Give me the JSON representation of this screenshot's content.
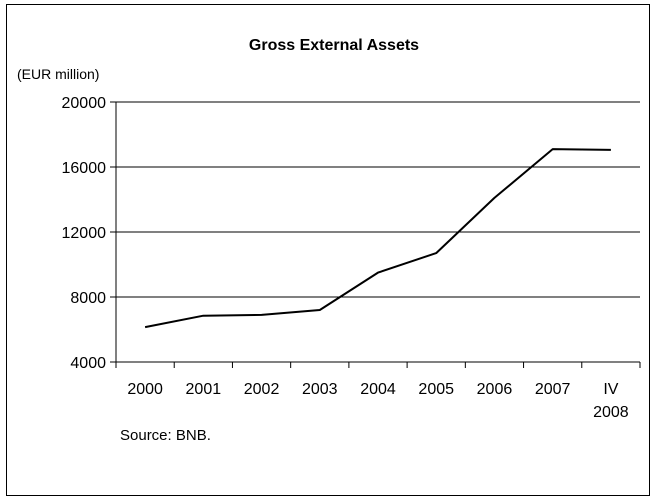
{
  "chart_data": {
    "type": "line",
    "title": "Gross External Assets",
    "unit_label": "(EUR million)",
    "source": "Source: BNB.",
    "categories": [
      "2000",
      "2001",
      "2002",
      "2003",
      "2004",
      "2005",
      "2006",
      "2007",
      "IV\n2008"
    ],
    "series": [
      {
        "values": [
          6150,
          6850,
          6900,
          7200,
          9500,
          10700,
          14100,
          17100,
          17050
        ],
        "color": "#000000"
      }
    ],
    "ylim": [
      4000,
      20000
    ],
    "yticks": [
      4000,
      8000,
      12000,
      16000,
      20000
    ],
    "grid": true
  }
}
